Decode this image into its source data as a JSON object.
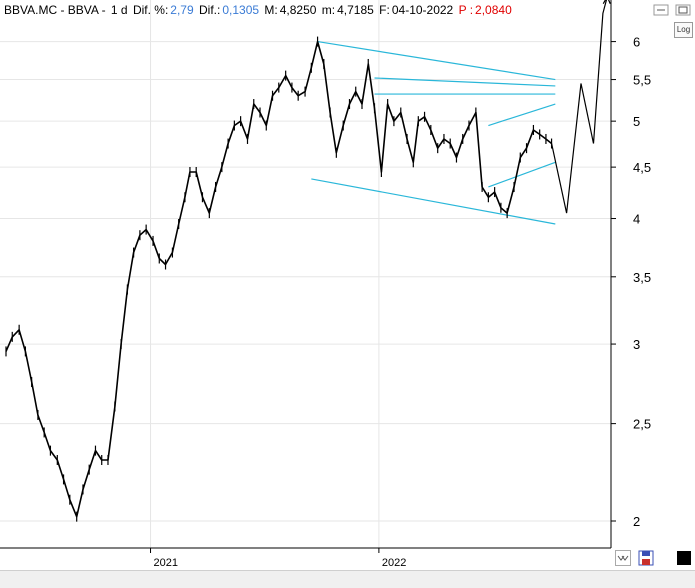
{
  "header": {
    "symbol": "BBVA.MC - BBVA -",
    "interval": "1 d",
    "dif_pct_label": "Dif. %:",
    "dif_pct_value": "2,79",
    "dif_label": "Dif.:",
    "dif_value": "0,1305",
    "max_label": "M:",
    "max_value": "4,8250",
    "min_label": "m:",
    "min_value": "4,7185",
    "date_label": "F:",
    "date_value": "04-10-2022",
    "p_label": "P :",
    "p_value": "2,0840"
  },
  "controls": {
    "log_label": "Log"
  },
  "colors": {
    "price": "#000000",
    "trendline": "#2ab7d9",
    "grid": "#e6e6e6",
    "blue_value": "#3a7bd5",
    "red_value": "#e00000"
  },
  "chart_data": {
    "type": "line",
    "scale": "log",
    "ylim": [
      1.88,
      6.6
    ],
    "y_ticks": [
      {
        "value": 2,
        "label": "2"
      },
      {
        "value": 2.5,
        "label": "2,5"
      },
      {
        "value": 3,
        "label": "3"
      },
      {
        "value": 3.5,
        "label": "3,5"
      },
      {
        "value": 4,
        "label": "4"
      },
      {
        "value": 4.5,
        "label": "4,5"
      },
      {
        "value": 5,
        "label": "5"
      },
      {
        "value": 5.5,
        "label": "5,5"
      },
      {
        "value": 6,
        "label": "6"
      }
    ],
    "x_range": [
      "2020-05-15",
      "2022-12-30"
    ],
    "x_ticks": [
      {
        "date": "2021-01-01",
        "label": "2021"
      },
      {
        "date": "2022-01-01",
        "label": "2022"
      }
    ],
    "price_series": {
      "dates": [
        "2020-05-15",
        "2020-05-25",
        "2020-06-05",
        "2020-06-15",
        "2020-06-25",
        "2020-07-05",
        "2020-07-15",
        "2020-07-25",
        "2020-08-05",
        "2020-08-15",
        "2020-08-25",
        "2020-09-05",
        "2020-09-15",
        "2020-09-25",
        "2020-10-05",
        "2020-10-15",
        "2020-10-25",
        "2020-11-05",
        "2020-11-15",
        "2020-11-25",
        "2020-12-05",
        "2020-12-15",
        "2020-12-25",
        "2021-01-05",
        "2021-01-15",
        "2021-01-25",
        "2021-02-05",
        "2021-02-15",
        "2021-02-25",
        "2021-03-05",
        "2021-03-15",
        "2021-03-25",
        "2021-04-05",
        "2021-04-15",
        "2021-04-25",
        "2021-05-05",
        "2021-05-15",
        "2021-05-25",
        "2021-06-05",
        "2021-06-15",
        "2021-06-25",
        "2021-07-05",
        "2021-07-15",
        "2021-07-25",
        "2021-08-05",
        "2021-08-15",
        "2021-08-25",
        "2021-09-05",
        "2021-09-15",
        "2021-09-25",
        "2021-10-05",
        "2021-10-15",
        "2021-10-25",
        "2021-11-05",
        "2021-11-15",
        "2021-11-25",
        "2021-12-05",
        "2021-12-15",
        "2021-12-25",
        "2022-01-05",
        "2022-01-15",
        "2022-01-25",
        "2022-02-05",
        "2022-02-15",
        "2022-02-25",
        "2022-03-05",
        "2022-03-15",
        "2022-03-25",
        "2022-04-05",
        "2022-04-15",
        "2022-04-25",
        "2022-05-05",
        "2022-05-15",
        "2022-05-25",
        "2022-06-05",
        "2022-06-15",
        "2022-06-25",
        "2022-07-05",
        "2022-07-15",
        "2022-07-25",
        "2022-08-05",
        "2022-08-15",
        "2022-08-25",
        "2022-09-05",
        "2022-09-15",
        "2022-09-25",
        "2022-10-04"
      ],
      "values": [
        2.95,
        3.05,
        3.1,
        2.95,
        2.75,
        2.55,
        2.45,
        2.35,
        2.3,
        2.2,
        2.1,
        2.02,
        2.15,
        2.25,
        2.35,
        2.3,
        2.3,
        2.6,
        3.0,
        3.4,
        3.7,
        3.85,
        3.9,
        3.8,
        3.65,
        3.6,
        3.7,
        3.95,
        4.2,
        4.45,
        4.45,
        4.2,
        4.05,
        4.3,
        4.5,
        4.75,
        4.95,
        5.0,
        4.8,
        5.2,
        5.1,
        4.95,
        5.3,
        5.4,
        5.55,
        5.4,
        5.3,
        5.35,
        5.65,
        6.0,
        5.7,
        5.1,
        4.65,
        4.95,
        5.2,
        5.35,
        5.2,
        5.7,
        5.15,
        4.45,
        5.2,
        5.0,
        5.1,
        4.8,
        4.55,
        5.0,
        5.05,
        4.9,
        4.7,
        4.8,
        4.75,
        4.6,
        4.8,
        4.95,
        5.1,
        4.3,
        4.2,
        4.25,
        4.1,
        4.05,
        4.3,
        4.6,
        4.7,
        4.9,
        4.85,
        4.8,
        4.75
      ]
    },
    "trendlines": [
      {
        "from": [
          "2021-09-25",
          6.0
        ],
        "to": [
          "2022-10-10",
          5.5
        ]
      },
      {
        "from": [
          "2021-12-25",
          5.52
        ],
        "to": [
          "2022-10-10",
          5.42
        ]
      },
      {
        "from": [
          "2021-12-25",
          5.32
        ],
        "to": [
          "2022-10-10",
          5.32
        ]
      },
      {
        "from": [
          "2021-09-15",
          4.38
        ],
        "to": [
          "2022-10-10",
          3.95
        ]
      },
      {
        "from": [
          "2022-06-25",
          4.95
        ],
        "to": [
          "2022-10-10",
          5.2
        ]
      },
      {
        "from": [
          "2022-06-25",
          4.3
        ],
        "to": [
          "2022-10-10",
          4.55
        ]
      }
    ],
    "projection": {
      "dates": [
        "2022-10-04",
        "2022-10-28",
        "2022-11-20",
        "2022-12-10",
        "2022-12-25",
        "2023-01-01"
      ],
      "values": [
        4.75,
        4.05,
        5.45,
        4.75,
        6.4,
        6.65
      ]
    }
  }
}
